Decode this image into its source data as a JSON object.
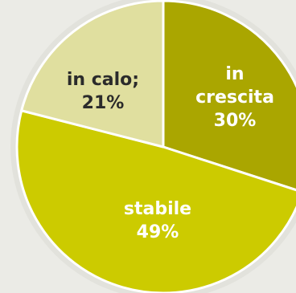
{
  "chart_data": {
    "type": "pie",
    "title": "",
    "slices": [
      {
        "label_lines": [
          "in",
          "crescita"
        ],
        "value": 30,
        "value_text": "30%",
        "color": "#aaa600",
        "text_color": "#ffffff"
      },
      {
        "label_lines": [
          "stabile"
        ],
        "value": 49,
        "value_text": "49%",
        "color": "#cccb00",
        "text_color": "#ffffff"
      },
      {
        "label_lines": [
          "in calo;"
        ],
        "value": 21,
        "value_text": "21%",
        "color": "#e0df9f",
        "text_color": "#2b2b2b"
      }
    ],
    "start_angle_deg": 0,
    "direction": "clockwise",
    "legend": "none",
    "background_color": "#ebebe6",
    "ring_color": "#e2e2dc",
    "separator_color": "#ffffff"
  }
}
